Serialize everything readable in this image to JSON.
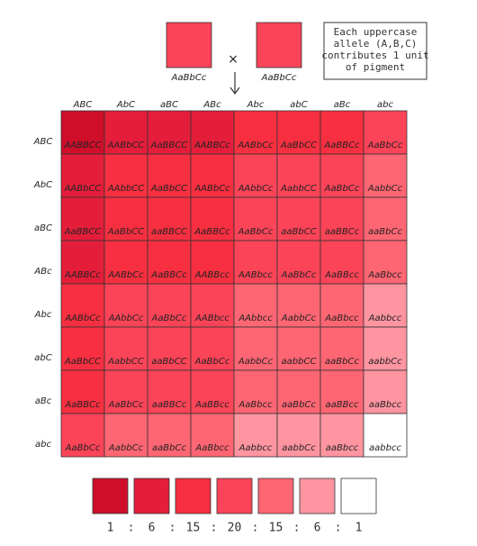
{
  "parents": [
    "AaBbCc",
    "AaBbCc"
  ],
  "cross": "×",
  "note": [
    "Each uppercase",
    "allele (A,B,C)",
    "contributes 1 unit",
    "of pigment"
  ],
  "columns": [
    "ABC",
    "AbC",
    "aBC",
    "ABc",
    "Abc",
    "abC",
    "aBc",
    "abc"
  ],
  "rows": [
    "ABC",
    "AbC",
    "aBC",
    "ABc",
    "Abc",
    "abC",
    "aBc",
    "abc"
  ],
  "cells": [
    [
      "AABBCC",
      "AABbCC",
      "AaBBCC",
      "AABBCc",
      "AABbCc",
      "AaBbCC",
      "AaBBCc",
      "AaBbCc"
    ],
    [
      "AABbCC",
      "AAbbCC",
      "AaBbCC",
      "AABbCc",
      "AAbbCc",
      "AabbCC",
      "AaBbCc",
      "AabbCc"
    ],
    [
      "AaBBCC",
      "AaBbCC",
      "aaBBCC",
      "AaBBCc",
      "AaBbCc",
      "aaBbCC",
      "aaBBCc",
      "aaBbCc"
    ],
    [
      "AABBCc",
      "AABbCc",
      "AaBBCc",
      "AABBcc",
      "AABbcc",
      "AaBbCc",
      "AaBBcc",
      "AaBbcc"
    ],
    [
      "AABbCc",
      "AAbbCc",
      "AaBbCc",
      "AABbcc",
      "AAbbcc",
      "AabbCc",
      "AaBbcc",
      "Aabbcc"
    ],
    [
      "AaBbCC",
      "AabbCC",
      "aaBbCC",
      "AaBbCc",
      "AabbCc",
      "aabbCC",
      "aaBbCc",
      "aabbCc"
    ],
    [
      "AaBBCc",
      "AaBbCc",
      "aaBBCc",
      "AaBBcc",
      "AaBbcc",
      "aaBbCc",
      "aaBBcc",
      "aaBbcc"
    ],
    [
      "AaBbCc",
      "AabbCc",
      "aaBbCc",
      "AaBbcc",
      "Aabbcc",
      "aabbCc",
      "aaBbcc",
      "aabbcc"
    ]
  ],
  "legend": {
    "colors": [
      "#cf0f2a",
      "#e41e3a",
      "#f72f40",
      "#fc4458",
      "#ff6673",
      "#ff95a1",
      "#ffffff"
    ],
    "ratio": [
      1,
      6,
      15,
      20,
      15,
      6,
      1
    ],
    "separator": ":"
  }
}
